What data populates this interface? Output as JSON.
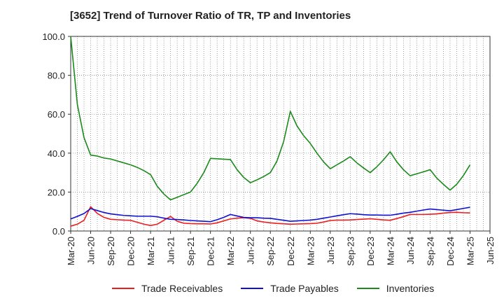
{
  "title": "[3652]  Trend of Turnover Ratio of TR, TP and Inventories",
  "chart_data": {
    "type": "line",
    "title": "[3652]  Trend of Turnover Ratio of TR, TP and Inventories",
    "xlabel": "",
    "ylabel": "",
    "ylim": [
      0,
      100
    ],
    "yticks": [
      "0.0",
      "20.0",
      "40.0",
      "60.0",
      "80.0",
      "100.0"
    ],
    "xtick_labels": [
      "Mar-20",
      "Jun-20",
      "Sep-20",
      "Dec-20",
      "Mar-21",
      "Jun-21",
      "Sep-21",
      "Dec-21",
      "Mar-22",
      "Jun-22",
      "Sep-22",
      "Dec-22",
      "Mar-23",
      "Jun-23",
      "Sep-23",
      "Dec-23",
      "Mar-24",
      "Jun-24",
      "Sep-24",
      "Dec-24",
      "Mar-25",
      "Jun-25"
    ],
    "x": [
      "Mar-20",
      "Apr-20",
      "May-20",
      "Jun-20",
      "Jul-20",
      "Aug-20",
      "Sep-20",
      "Oct-20",
      "Nov-20",
      "Dec-20",
      "Jan-21",
      "Feb-21",
      "Mar-21",
      "Apr-21",
      "May-21",
      "Jun-21",
      "Jul-21",
      "Aug-21",
      "Sep-21",
      "Oct-21",
      "Nov-21",
      "Dec-21",
      "Jan-22",
      "Feb-22",
      "Mar-22",
      "Apr-22",
      "May-22",
      "Jun-22",
      "Jul-22",
      "Aug-22",
      "Sep-22",
      "Oct-22",
      "Nov-22",
      "Dec-22",
      "Jan-23",
      "Feb-23",
      "Mar-23",
      "Apr-23",
      "May-23",
      "Jun-23",
      "Jul-23",
      "Aug-23",
      "Sep-23",
      "Oct-23",
      "Nov-23",
      "Dec-23",
      "Jan-24",
      "Feb-24",
      "Mar-24",
      "Apr-24",
      "May-24",
      "Jun-24",
      "Jul-24",
      "Aug-24",
      "Sep-24",
      "Oct-24",
      "Nov-24",
      "Dec-24",
      "Jan-25",
      "Feb-25",
      "Mar-25"
    ],
    "series": [
      {
        "name": "Trade Receivables",
        "color": "#ee1c1c",
        "values": [
          2.5,
          3.5,
          5.5,
          12.5,
          9,
          7,
          6,
          5.8,
          5.6,
          5.5,
          4.5,
          3.5,
          2.8,
          3.5,
          5.5,
          7.5,
          5,
          4,
          3.8,
          3.7,
          3.7,
          3.6,
          4.2,
          5.2,
          6.2,
          6.6,
          6.8,
          6.5,
          5.2,
          4.6,
          4.2,
          3.9,
          3.7,
          3.5,
          3.6,
          3.7,
          3.8,
          4,
          4.6,
          5.4,
          5.6,
          5.6,
          5.7,
          5.9,
          6.1,
          6.3,
          6,
          5.7,
          5.5,
          6.4,
          7.4,
          8.5,
          8.5,
          8.5,
          8.6,
          8.8,
          9.2,
          9.5,
          9.6,
          9.4,
          9.3
        ]
      },
      {
        "name": "Trade Payables",
        "color": "#1010d0",
        "values": [
          6.2,
          7.5,
          9,
          11.5,
          10.5,
          9.5,
          8.8,
          8.4,
          8,
          7.8,
          7.6,
          7.6,
          7.6,
          7.3,
          6.6,
          6,
          5.9,
          5.7,
          5.4,
          5.2,
          5,
          4.8,
          5.8,
          7,
          8.5,
          7.7,
          7,
          6.8,
          6.8,
          6.6,
          6.5,
          6,
          5.5,
          5,
          5.2,
          5.4,
          5.6,
          6,
          6.6,
          7.2,
          7.8,
          8.4,
          8.9,
          8.7,
          8.4,
          8.2,
          8.2,
          8.1,
          8.1,
          8.6,
          9.2,
          9.6,
          10.2,
          10.8,
          11.3,
          11,
          10.7,
          10.4,
          11,
          11.6,
          12.2
        ]
      },
      {
        "name": "Inventories",
        "color": "#1a8a1a",
        "values": [
          100,
          65,
          48,
          39,
          38.5,
          37.5,
          37,
          36,
          35,
          34,
          32.7,
          31,
          29,
          23,
          19,
          16,
          17.3,
          18.7,
          20,
          24.5,
          30,
          37.3,
          37.1,
          36.9,
          36.7,
          31.5,
          27.5,
          24.8,
          26.3,
          28,
          30,
          36,
          46,
          61.5,
          54,
          49,
          45,
          40,
          35.5,
          32,
          34,
          36,
          38.2,
          35,
          32.4,
          30,
          33,
          36.6,
          40.7,
          35.5,
          31.5,
          28.4,
          29.4,
          30.4,
          31.5,
          27.2,
          24,
          21,
          24,
          28.5,
          34
        ]
      }
    ],
    "legend_position": "bottom",
    "grid": true
  },
  "legend": [
    "Trade Receivables",
    "Trade Payables",
    "Inventories"
  ],
  "colors": {
    "receivables": "#ee1c1c",
    "payables": "#1010d0",
    "inventories": "#1a8a1a"
  }
}
